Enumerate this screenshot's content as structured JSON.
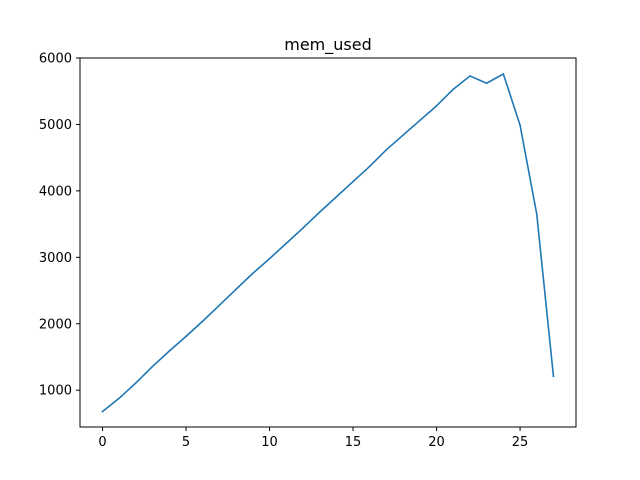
{
  "chart_data": {
    "type": "line",
    "title": "mem_used",
    "xlabel": "",
    "ylabel": "",
    "xlim": [
      -1.35,
      28.35
    ],
    "ylim": [
      446,
      6000
    ],
    "grid": false,
    "xticks": [
      0,
      5,
      10,
      15,
      20,
      25
    ],
    "yticks": [
      1000,
      2000,
      3000,
      4000,
      5000,
      6000
    ],
    "series": [
      {
        "color": "#1f77b4",
        "x": [
          0,
          1,
          2,
          3,
          4,
          5,
          6,
          7,
          8,
          9,
          10,
          11,
          12,
          13,
          14,
          15,
          16,
          17,
          18,
          19,
          20,
          21,
          22,
          23,
          24,
          25,
          26,
          27
        ],
        "values": [
          680,
          880,
          1110,
          1360,
          1590,
          1810,
          2040,
          2280,
          2520,
          2760,
          2980,
          3210,
          3440,
          3680,
          3910,
          4140,
          4370,
          4620,
          4840,
          5060,
          5280,
          5530,
          5730,
          5620,
          5760,
          4990,
          3650,
          1210
        ]
      }
    ]
  }
}
